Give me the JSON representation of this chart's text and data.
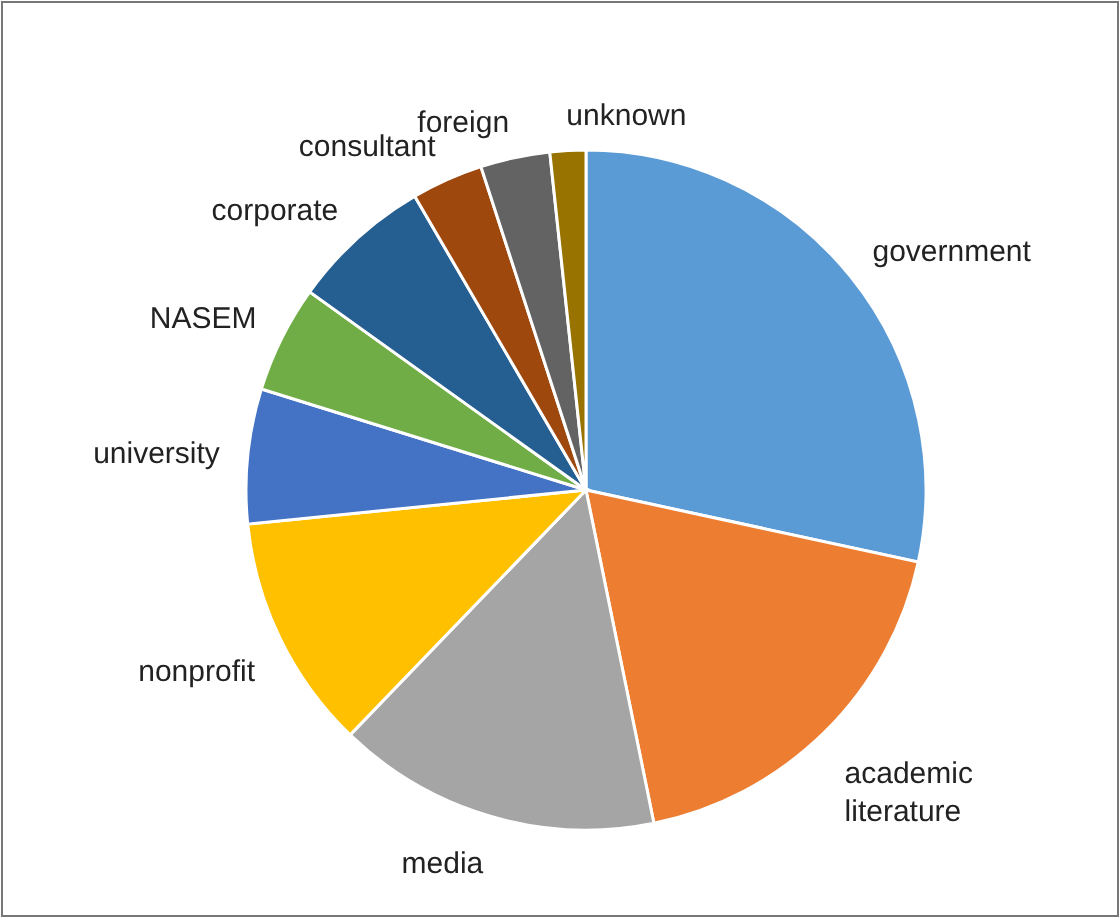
{
  "chart_data": {
    "type": "pie",
    "categories": [
      "government",
      "academic literature",
      "media",
      "nonprofit",
      "university",
      "NASEM",
      "corporate",
      "consultant",
      "foreign",
      "unknown"
    ],
    "values": [
      28.4,
      18.4,
      15.4,
      11.2,
      6.4,
      5.1,
      6.7,
      3.4,
      3.3,
      1.7
    ],
    "colors": [
      "#5b9bd5",
      "#ed7d31",
      "#a5a5a5",
      "#ffc000",
      "#4472c4",
      "#70ad47",
      "#255e91",
      "#9e480e",
      "#636363",
      "#997300"
    ]
  }
}
